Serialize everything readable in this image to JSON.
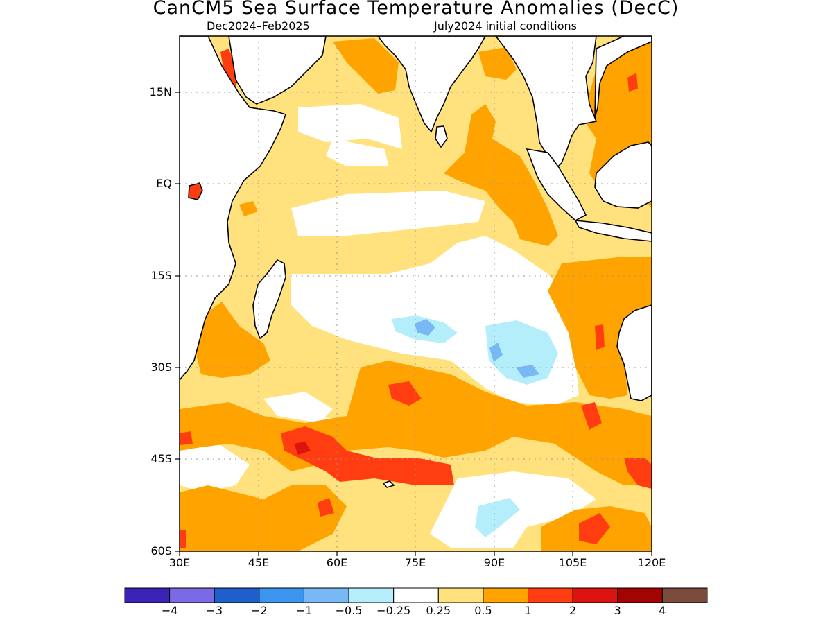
{
  "header": {
    "title": "CanCM5 Sea Surface Temperature Anomalies (DecC)",
    "period": "Dec2024–Feb2025",
    "init": "July2024 initial conditions"
  },
  "map": {
    "lon_range": [
      30,
      120
    ],
    "lat_range": [
      -60,
      24
    ],
    "y_ticks": [
      "15N",
      "EQ",
      "15S",
      "30S",
      "45S",
      "60S"
    ],
    "x_ticks": [
      "30E",
      "45E",
      "60E",
      "75E",
      "90E",
      "105E",
      "120E"
    ],
    "gridlines": true,
    "land_color": "#ffffff",
    "coastline_color": "#000000"
  },
  "legend": {
    "thresholds": [
      "−4",
      "−3",
      "−2",
      "−1",
      "−0.5",
      "−0.25",
      "0.25",
      "0.5",
      "1",
      "2",
      "3",
      "4"
    ],
    "colors": [
      "#3b23b8",
      "#7a6ae6",
      "#1f5fcc",
      "#3c96f0",
      "#78b9f5",
      "#b3eefa",
      "#ffffff",
      "#ffe27e",
      "#ffa300",
      "#ff3d10",
      "#dc1410",
      "#a20404",
      "#7a4a3c"
    ]
  }
}
